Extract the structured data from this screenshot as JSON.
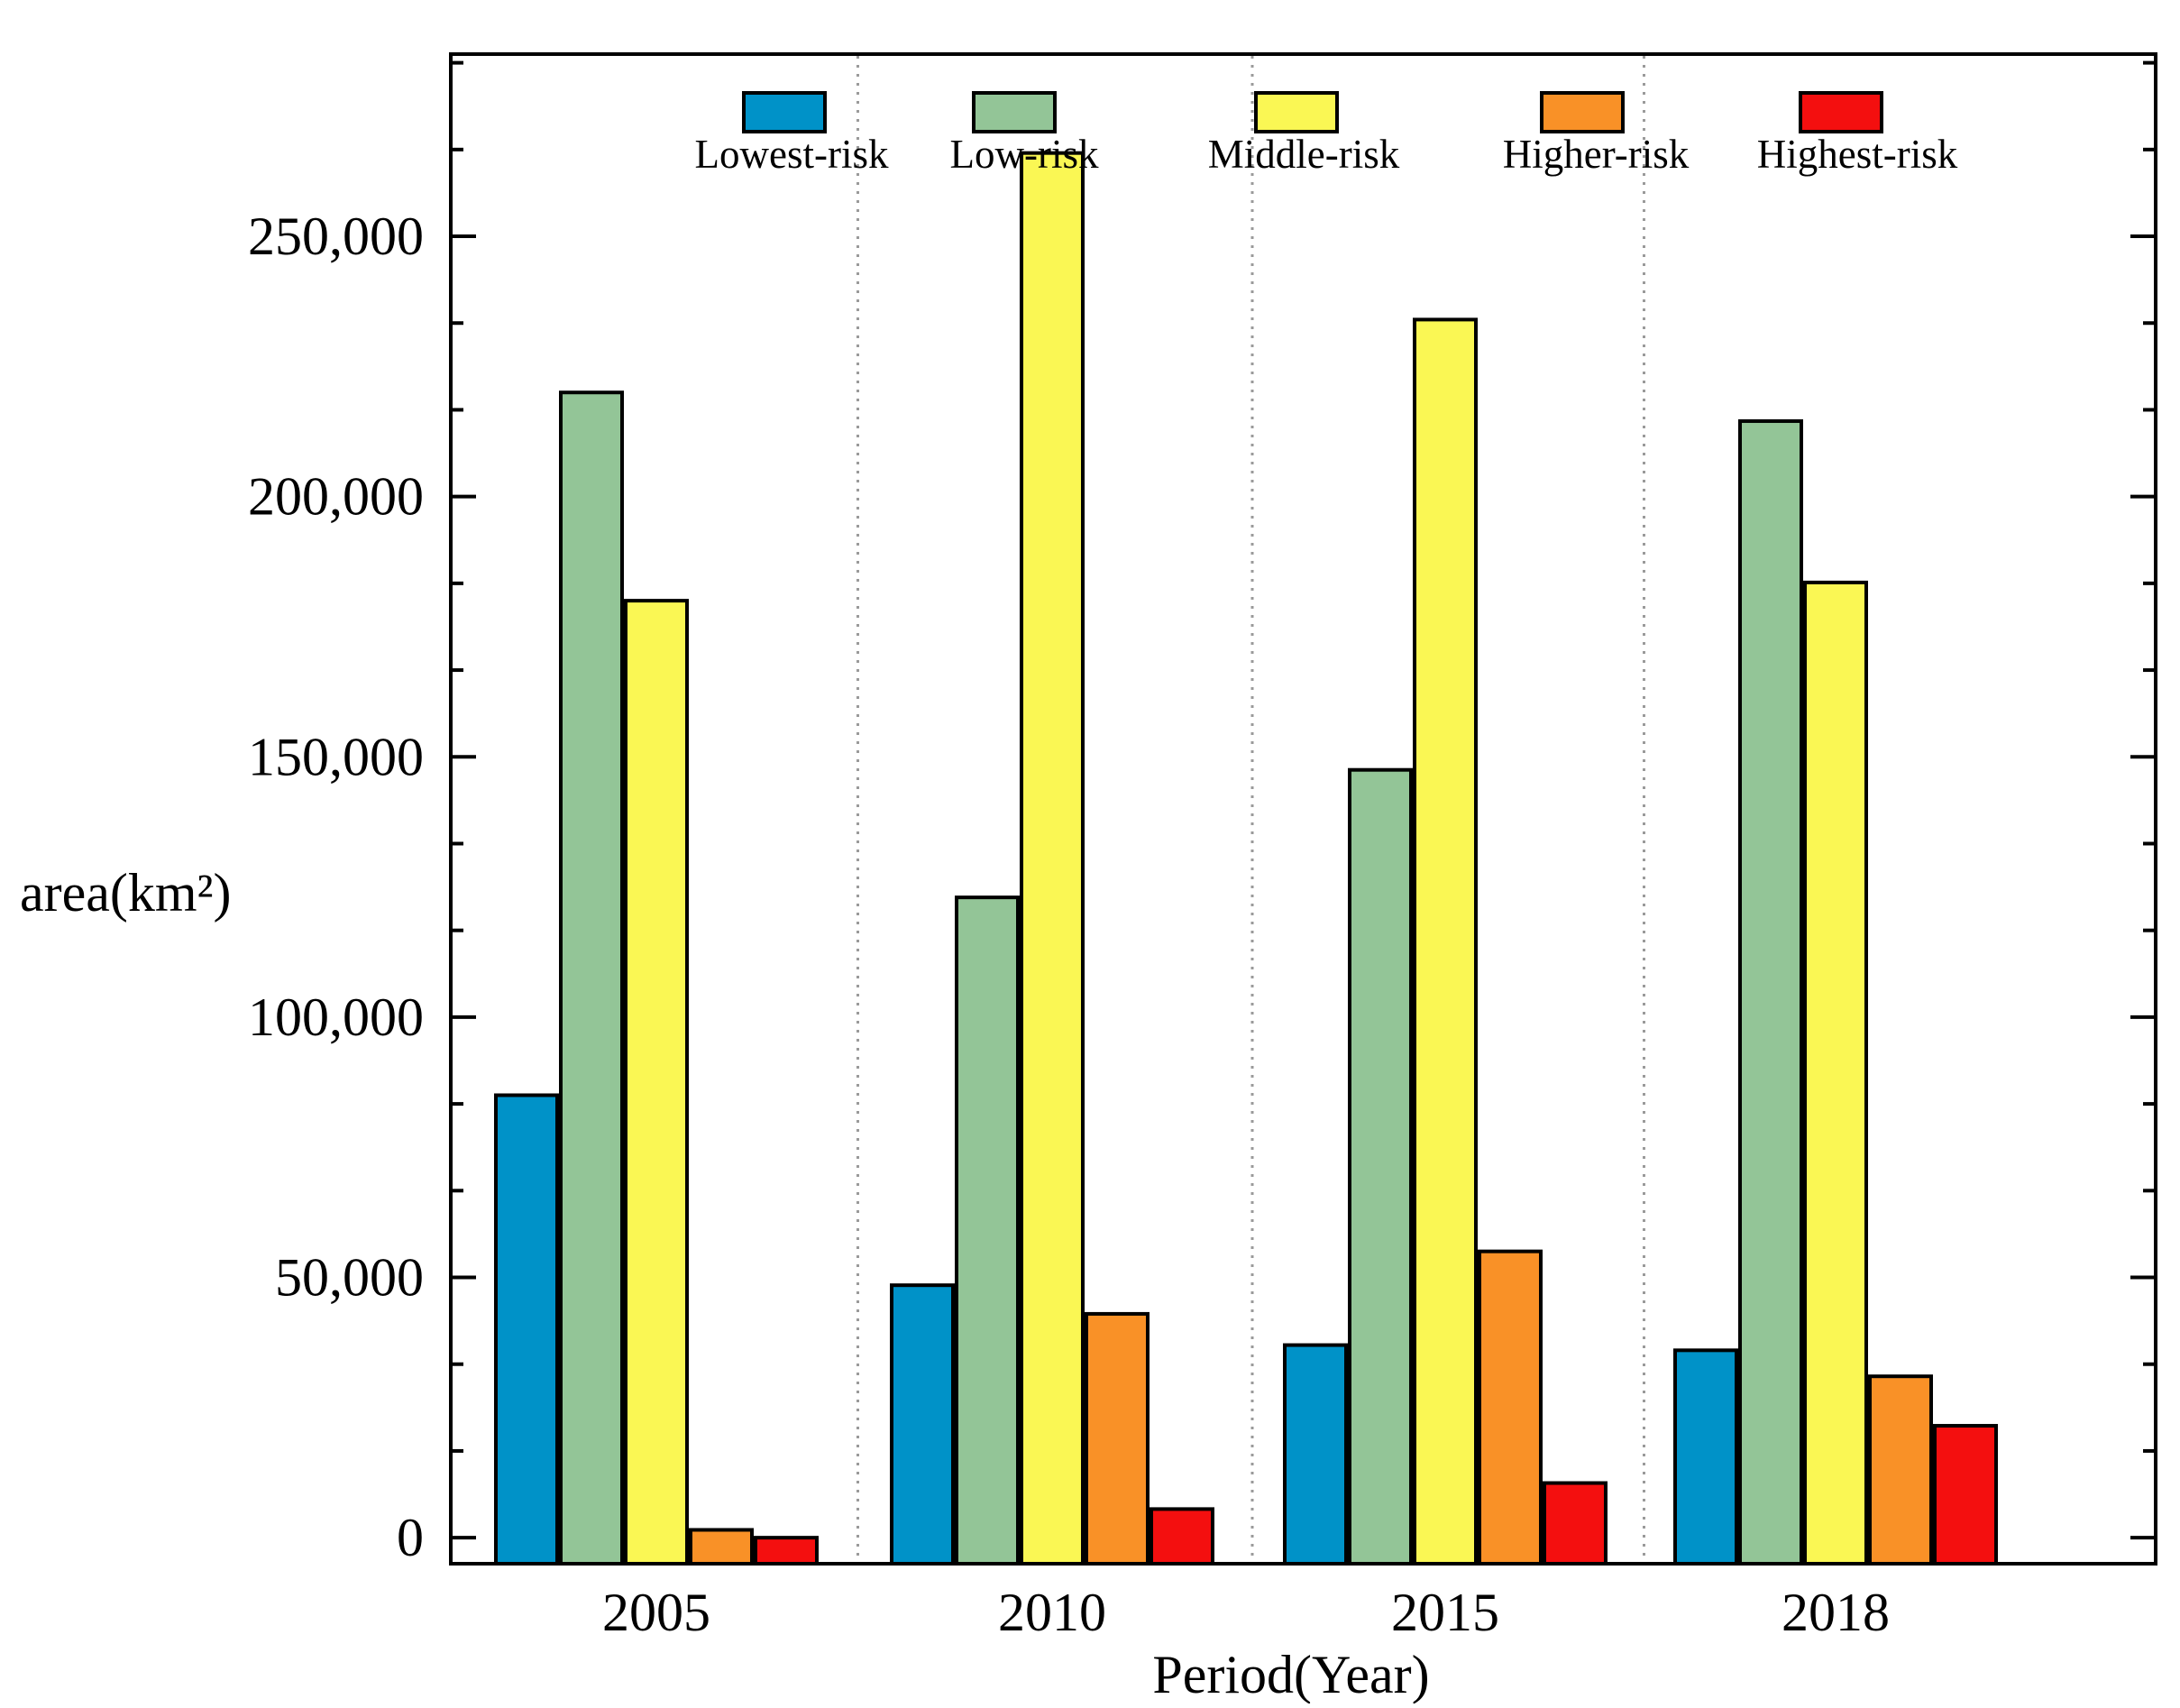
{
  "chart_data": {
    "type": "bar",
    "title": "",
    "xlabel": "Period(Year)",
    "ylabel": "area(km²)",
    "categories": [
      "2005",
      "2010",
      "2015",
      "2018"
    ],
    "ylim": [
      -5000,
      285000
    ],
    "yticks": [
      0,
      50000,
      100000,
      150000,
      200000,
      250000
    ],
    "ytick_labels": [
      "0",
      "50,000",
      "100,000",
      "150,000",
      "200,000",
      "250,000"
    ],
    "grid": "vertical dotted separators between periods",
    "legend_position": "top",
    "series": [
      {
        "name": "Lowest-risk",
        "color": "#0092C8",
        "values": [
          85000,
          48500,
          37000,
          36000
        ]
      },
      {
        "name": "Low-risk",
        "color": "#93C597",
        "values": [
          220000,
          123000,
          147500,
          214500
        ]
      },
      {
        "name": "Middle-risk",
        "color": "#FAF754",
        "values": [
          180000,
          266000,
          234000,
          183500
        ]
      },
      {
        "name": "Higher-risk",
        "color": "#F99127",
        "values": [
          1500,
          43000,
          55000,
          31000
        ]
      },
      {
        "name": "Highest-risk",
        "color": "#F40F0F",
        "values": [
          0,
          5500,
          10500,
          21500
        ]
      }
    ]
  }
}
